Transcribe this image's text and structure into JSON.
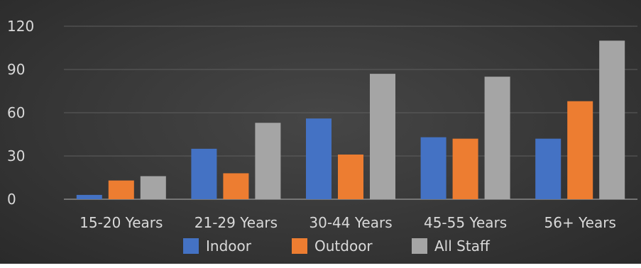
{
  "chart_data": {
    "type": "bar",
    "title": "",
    "xlabel": "",
    "ylabel": "",
    "categories": [
      "15-20 Years",
      "21-29 Years",
      "30-44 Years",
      "45-55 Years",
      "56+ Years"
    ],
    "series": [
      {
        "name": "Indoor",
        "color": "#4472c4",
        "values": [
          3,
          35,
          56,
          43,
          42
        ]
      },
      {
        "name": "Outdoor",
        "color": "#ed7d31",
        "values": [
          13,
          18,
          31,
          42,
          68
        ]
      },
      {
        "name": "All Staff",
        "color": "#a5a5a5",
        "values": [
          16,
          53,
          87,
          85,
          110
        ]
      }
    ],
    "ylim": [
      0,
      120
    ],
    "yticks": [
      "0",
      "30",
      "60",
      "90",
      "120"
    ],
    "grid": true,
    "legend_position": "bottom"
  }
}
